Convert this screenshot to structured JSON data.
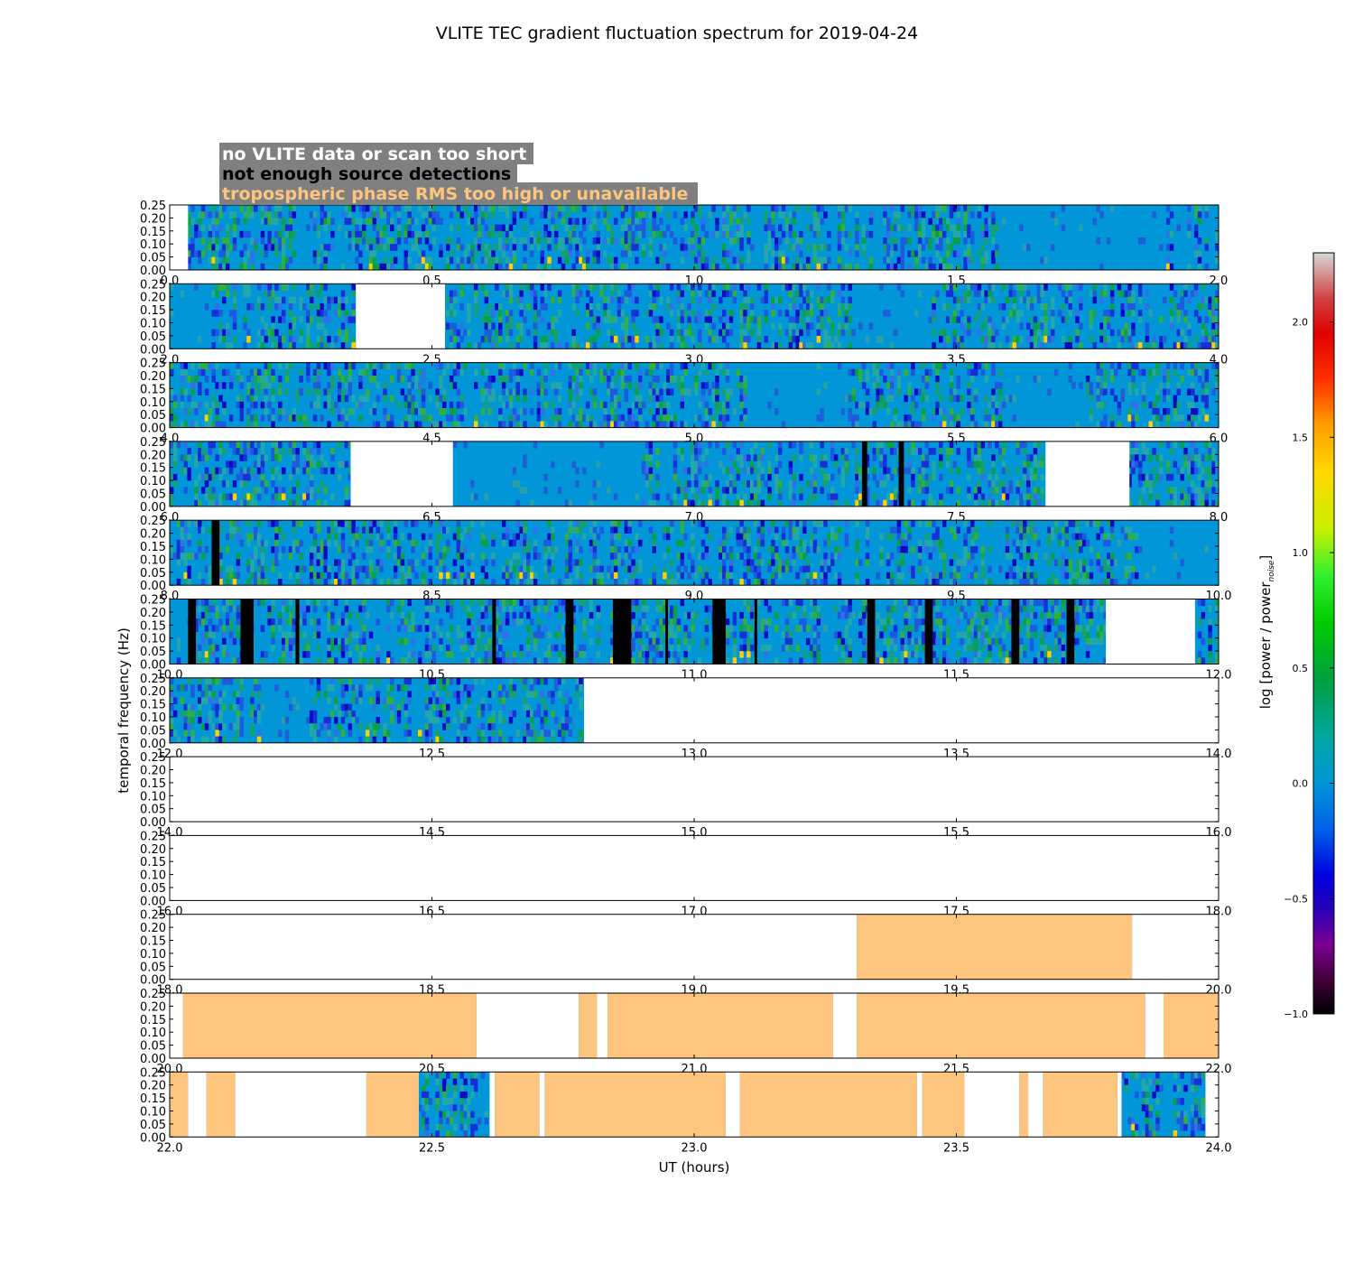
{
  "chart_data": {
    "type": "heatmap",
    "title": "VLITE TEC gradient fluctuation spectrum for 2019-04-24",
    "xlabel": "UT (hours)",
    "ylabel": "temporal frequency (Hz)",
    "ylim": [
      0,
      0.25
    ],
    "ytick_labels": [
      "0.00",
      "0.05",
      "0.10",
      "0.15",
      "0.20",
      "0.25"
    ],
    "colorbar": {
      "label": "log [power / power",
      "label_sub": "noise",
      "label_end": "]",
      "range": [
        -1.0,
        2.3
      ],
      "tick_labels": [
        "−1.0",
        "−0.5",
        "0.0",
        "0.5",
        "1.0",
        "1.5",
        "2.0"
      ],
      "tick_values": [
        -1.0,
        -0.5,
        0.0,
        0.5,
        1.0,
        1.5,
        2.0
      ]
    },
    "legend": [
      {
        "text": "no VLITE data or scan too short",
        "color": "#ffffff"
      },
      {
        "text": "not enough source detections",
        "color": "#000000"
      },
      {
        "text": "tropospheric phase RMS too high or unavailable",
        "color": "#fdc57e"
      }
    ],
    "colors": {
      "data_base": "#0096d8",
      "flag_orange": "#fdc57e",
      "flag_black": "#000000",
      "no_data": "#ffffff"
    },
    "panels": [
      {
        "range": [
          0,
          2
        ],
        "xtick_labels": [
          "0.0",
          "0.5",
          "1.0",
          "1.5",
          "2.0"
        ],
        "nodata": [
          [
            0.0,
            0.035
          ]
        ],
        "black": [],
        "orange": [],
        "quiet": [
          [
            1.58,
            1.9
          ]
        ]
      },
      {
        "range": [
          2,
          4
        ],
        "xtick_labels": [
          "2.0",
          "2.5",
          "3.0",
          "3.5",
          "4.0"
        ],
        "nodata": [
          [
            2.355,
            2.525
          ]
        ],
        "black": [],
        "orange": [],
        "quiet": [
          [
            2.0,
            2.08
          ],
          [
            3.3,
            3.45
          ]
        ]
      },
      {
        "range": [
          4,
          6
        ],
        "xtick_labels": [
          "4.0",
          "4.5",
          "5.0",
          "5.5",
          "6.0"
        ],
        "nodata": [],
        "black": [],
        "orange": [],
        "quiet": [
          [
            5.1,
            5.3
          ],
          [
            5.6,
            5.75
          ]
        ]
      },
      {
        "range": [
          6,
          8
        ],
        "xtick_labels": [
          "6.0",
          "6.5",
          "7.0",
          "7.5",
          "8.0"
        ],
        "nodata": [
          [
            6.345,
            6.54
          ],
          [
            7.67,
            7.83
          ]
        ],
        "black": [
          [
            7.32,
            7.33
          ],
          [
            7.39,
            7.4
          ]
        ],
        "orange": [],
        "quiet": [
          [
            6.54,
            6.9
          ]
        ]
      },
      {
        "range": [
          8,
          10
        ],
        "xtick_labels": [
          "8.0",
          "8.5",
          "9.0",
          "9.5",
          "10.0"
        ],
        "nodata": [],
        "black": [
          [
            8.08,
            8.095
          ]
        ],
        "orange": [],
        "quiet": [
          [
            9.85,
            10.0
          ]
        ]
      },
      {
        "range": [
          10,
          12
        ],
        "xtick_labels": [
          "10.0",
          "10.5",
          "11.0",
          "11.5",
          "12.0"
        ],
        "nodata": [
          [
            11.785,
            11.955
          ]
        ],
        "black": [
          [
            10.035,
            10.05
          ],
          [
            10.135,
            10.16
          ],
          [
            10.24,
            10.247
          ],
          [
            10.615,
            10.622
          ],
          [
            10.755,
            10.77
          ],
          [
            10.845,
            10.88
          ],
          [
            10.945,
            10.95
          ],
          [
            11.035,
            11.06
          ],
          [
            11.115,
            11.12
          ],
          [
            11.33,
            11.345
          ],
          [
            11.44,
            11.455
          ],
          [
            11.605,
            11.62
          ],
          [
            11.71,
            11.725
          ]
        ],
        "orange": [],
        "quiet": []
      },
      {
        "range": [
          12,
          14
        ],
        "xtick_labels": [
          "12.0",
          "12.5",
          "13.0",
          "13.5",
          "14.0"
        ],
        "nodata": [
          [
            12.79,
            14.0
          ]
        ],
        "black": [],
        "orange": [],
        "quiet": [
          [
            12.18,
            12.27
          ]
        ]
      },
      {
        "range": [
          14,
          16
        ],
        "xtick_labels": [
          "14.0",
          "14.5",
          "15.0",
          "15.5",
          "16.0"
        ],
        "nodata": [
          [
            14.0,
            16.0
          ]
        ],
        "black": [],
        "orange": [],
        "quiet": []
      },
      {
        "range": [
          16,
          18
        ],
        "xtick_labels": [
          "16.0",
          "16.5",
          "17.0",
          "17.5",
          "18.0"
        ],
        "nodata": [
          [
            16.0,
            18.0
          ]
        ],
        "black": [],
        "orange": [],
        "quiet": []
      },
      {
        "range": [
          18,
          20
        ],
        "xtick_labels": [
          "18.0",
          "18.5",
          "19.0",
          "19.5",
          "20.0"
        ],
        "nodata": [
          [
            18.0,
            19.31
          ],
          [
            19.835,
            20.0
          ]
        ],
        "black": [],
        "orange": [
          [
            19.31,
            19.835
          ]
        ],
        "quiet": []
      },
      {
        "range": [
          20,
          22
        ],
        "xtick_labels": [
          "20.0",
          "20.5",
          "21.0",
          "21.5",
          "22.0"
        ],
        "nodata": [
          [
            20.0,
            20.025
          ],
          [
            20.585,
            20.78
          ],
          [
            20.815,
            20.835
          ],
          [
            21.265,
            21.31
          ],
          [
            21.86,
            21.895
          ]
        ],
        "black": [],
        "orange": [
          [
            20.025,
            20.585
          ],
          [
            20.78,
            20.815
          ],
          [
            20.835,
            21.265
          ],
          [
            21.31,
            21.86
          ],
          [
            21.895,
            22.0
          ]
        ],
        "quiet": []
      },
      {
        "range": [
          22,
          24
        ],
        "xtick_labels": [
          "22.0",
          "22.5",
          "23.0",
          "23.5",
          "24.0"
        ],
        "nodata": [
          [
            22.035,
            22.07
          ],
          [
            22.125,
            22.375
          ],
          [
            22.61,
            22.62
          ],
          [
            22.705,
            22.715
          ],
          [
            23.06,
            23.087
          ],
          [
            23.425,
            23.435
          ],
          [
            23.515,
            23.62
          ],
          [
            23.637,
            23.665
          ],
          [
            23.807,
            23.815
          ],
          [
            23.975,
            24.0
          ]
        ],
        "black": [],
        "orange": [
          [
            22.0,
            22.035
          ],
          [
            22.07,
            22.125
          ],
          [
            22.375,
            22.475
          ],
          [
            22.62,
            22.705
          ],
          [
            22.715,
            23.06
          ],
          [
            23.087,
            23.425
          ],
          [
            23.435,
            23.515
          ],
          [
            23.62,
            23.637
          ],
          [
            23.665,
            23.807
          ]
        ],
        "quiet": []
      }
    ]
  }
}
